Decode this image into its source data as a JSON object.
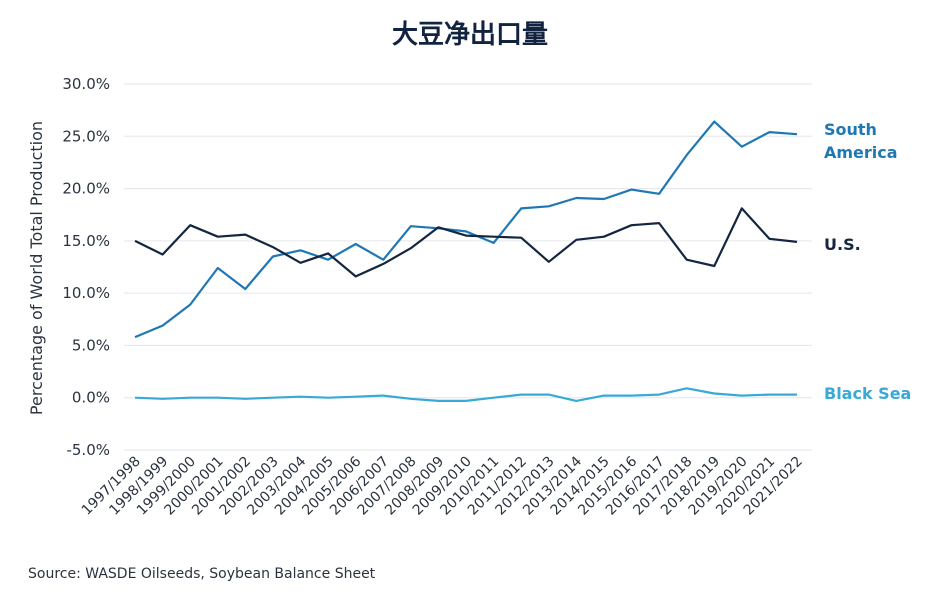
{
  "chart_data": {
    "type": "line",
    "title": "大豆净出口量",
    "ylabel": "Percentage of World Total Production",
    "xlabel": "",
    "ylim": [
      -5,
      30
    ],
    "yticks": [
      -5,
      0,
      5,
      10,
      15,
      20,
      25,
      30
    ],
    "ytick_labels": [
      "-5.0%",
      "0.0%",
      "5.0%",
      "10.0%",
      "15.0%",
      "20.0%",
      "25.0%",
      "30.0%"
    ],
    "grid": "horizontal",
    "legend": "right, labels at line ends",
    "categories": [
      "1997/1998",
      "1998/1999",
      "1999/2000",
      "2000/2001",
      "2001/2002",
      "2002/2003",
      "2003/2004",
      "2004/2005",
      "2005/2006",
      "2006/2007",
      "2007/2008",
      "2008/2009",
      "2009/2010",
      "2010/2011",
      "2011/2012",
      "2012/2013",
      "2013/2014",
      "2014/2015",
      "2015/2016",
      "2016/2017",
      "2017/2018",
      "2018/2019",
      "2019/2020",
      "2020/2021",
      "2021/2022"
    ],
    "series": [
      {
        "name": "South America",
        "label_lines": [
          "South",
          "America"
        ],
        "color": "#1f78b4",
        "values": [
          5.8,
          6.9,
          8.9,
          12.4,
          10.4,
          13.5,
          14.1,
          13.2,
          14.7,
          13.2,
          16.4,
          16.2,
          15.9,
          14.8,
          18.1,
          18.3,
          19.1,
          19.0,
          19.9,
          19.5,
          23.2,
          26.4,
          24.0,
          25.4,
          25.2
        ]
      },
      {
        "name": "U.S.",
        "label_lines": [
          "U.S."
        ],
        "color": "#142640",
        "values": [
          15.0,
          13.7,
          16.5,
          15.4,
          15.6,
          14.4,
          12.9,
          13.8,
          11.6,
          12.8,
          14.3,
          16.3,
          15.5,
          15.4,
          15.3,
          13.0,
          15.1,
          15.4,
          16.5,
          16.7,
          13.2,
          12.6,
          18.1,
          15.2,
          14.9
        ]
      },
      {
        "name": "Black Sea",
        "label_lines": [
          "Black Sea"
        ],
        "color": "#39a9d6",
        "values": [
          0.0,
          -0.1,
          0.0,
          0.0,
          -0.1,
          0.0,
          0.1,
          0.0,
          0.1,
          0.2,
          -0.1,
          -0.3,
          -0.3,
          0.0,
          0.3,
          0.3,
          -0.3,
          0.2,
          0.2,
          0.3,
          0.9,
          0.4,
          0.2,
          0.3,
          0.3
        ]
      }
    ]
  },
  "source": "Source: WASDE Oilseeds, Soybean Balance Sheet"
}
